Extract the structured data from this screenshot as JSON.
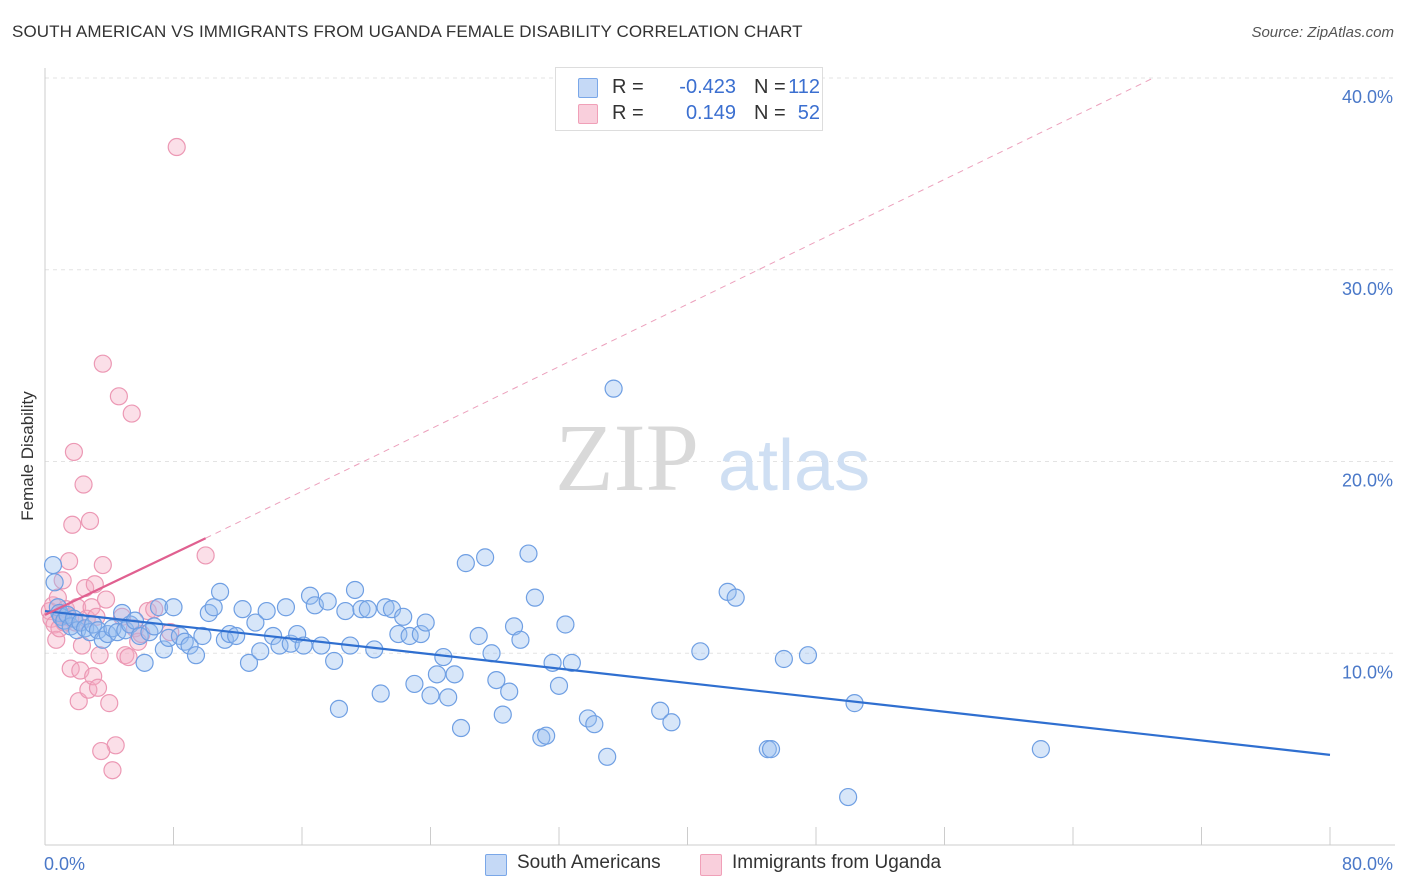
{
  "header": {
    "title": "SOUTH AMERICAN VS IMMIGRANTS FROM UGANDA FEMALE DISABILITY CORRELATION CHART",
    "source": "Source: ZipAtlas.com"
  },
  "watermark": {
    "zip": "ZIP",
    "atlas": "atlas"
  },
  "legend": {
    "rows": [
      {
        "r_label": "R =",
        "r_value": "-0.423",
        "n_label": "N =",
        "n_value": "112",
        "color": "#7aa7e8"
      },
      {
        "r_label": "R =",
        "r_value": "0.149",
        "n_label": "N =",
        "n_value": "52",
        "color": "#f0a0b8"
      }
    ]
  },
  "bottom_legend": {
    "items": [
      {
        "label": "South Americans",
        "color": "#7aa7e8"
      },
      {
        "label": "Immigrants from Uganda",
        "color": "#f0a0b8"
      }
    ]
  },
  "chart_data": {
    "type": "scatter",
    "title": "SOUTH AMERICAN VS IMMIGRANTS FROM UGANDA FEMALE DISABILITY CORRELATION CHART",
    "xlabel": "",
    "ylabel": "Female Disability",
    "xlim": [
      0,
      80
    ],
    "ylim": [
      0,
      40
    ],
    "x_ticks": [
      "0.0%",
      "80.0%"
    ],
    "y_ticks": [
      {
        "value": 10,
        "label": "10.0%"
      },
      {
        "value": 20,
        "label": "20.0%"
      },
      {
        "value": 30,
        "label": "30.0%"
      },
      {
        "value": 40,
        "label": "40.0%"
      }
    ],
    "grid": true,
    "legend_position": "top-center",
    "colors": {
      "blue": "#7aa7e8",
      "blue_line": "#2f6fd0",
      "pink": "#f0a0b8",
      "pink_line": "#e06090"
    },
    "series": [
      {
        "name": "South Americans",
        "color": "#7aa7e8",
        "points": [
          [
            0.5,
            14.6
          ],
          [
            0.6,
            13.7
          ],
          [
            0.8,
            12.4
          ],
          [
            0.9,
            12.1
          ],
          [
            1.0,
            11.9
          ],
          [
            1.2,
            11.7
          ],
          [
            1.4,
            12.0
          ],
          [
            1.6,
            11.4
          ],
          [
            1.8,
            11.8
          ],
          [
            2.0,
            11.2
          ],
          [
            2.2,
            11.6
          ],
          [
            2.5,
            11.3
          ],
          [
            2.8,
            11.1
          ],
          [
            3.0,
            11.5
          ],
          [
            3.3,
            11.2
          ],
          [
            3.6,
            10.7
          ],
          [
            3.9,
            11.0
          ],
          [
            4.2,
            11.3
          ],
          [
            4.5,
            11.1
          ],
          [
            4.8,
            12.1
          ],
          [
            5.0,
            11.2
          ],
          [
            5.3,
            11.5
          ],
          [
            5.6,
            11.7
          ],
          [
            5.9,
            10.9
          ],
          [
            6.2,
            9.5
          ],
          [
            6.5,
            11.1
          ],
          [
            6.8,
            11.4
          ],
          [
            7.1,
            12.4
          ],
          [
            7.4,
            10.2
          ],
          [
            7.7,
            10.8
          ],
          [
            8.0,
            12.4
          ],
          [
            8.4,
            10.9
          ],
          [
            8.7,
            10.6
          ],
          [
            9.0,
            10.4
          ],
          [
            9.4,
            9.9
          ],
          [
            9.8,
            10.9
          ],
          [
            10.2,
            12.1
          ],
          [
            10.5,
            12.4
          ],
          [
            10.9,
            13.2
          ],
          [
            11.2,
            10.7
          ],
          [
            11.5,
            11.0
          ],
          [
            11.9,
            10.9
          ],
          [
            12.3,
            12.3
          ],
          [
            12.7,
            9.5
          ],
          [
            13.1,
            11.6
          ],
          [
            13.4,
            10.1
          ],
          [
            13.8,
            12.2
          ],
          [
            14.2,
            10.9
          ],
          [
            14.6,
            10.4
          ],
          [
            15.0,
            12.4
          ],
          [
            15.3,
            10.5
          ],
          [
            15.7,
            11.0
          ],
          [
            16.1,
            10.4
          ],
          [
            16.5,
            13.0
          ],
          [
            16.8,
            12.5
          ],
          [
            17.2,
            10.4
          ],
          [
            17.6,
            12.7
          ],
          [
            18.0,
            9.6
          ],
          [
            18.3,
            7.1
          ],
          [
            18.7,
            12.2
          ],
          [
            19.0,
            10.4
          ],
          [
            19.3,
            13.3
          ],
          [
            19.7,
            12.3
          ],
          [
            20.1,
            12.3
          ],
          [
            20.5,
            10.2
          ],
          [
            20.9,
            7.9
          ],
          [
            21.2,
            12.4
          ],
          [
            21.6,
            12.3
          ],
          [
            22.0,
            11.0
          ],
          [
            22.3,
            11.9
          ],
          [
            22.7,
            10.9
          ],
          [
            23.0,
            8.4
          ],
          [
            23.4,
            11.0
          ],
          [
            23.7,
            11.6
          ],
          [
            24.0,
            7.8
          ],
          [
            24.4,
            8.9
          ],
          [
            24.8,
            9.8
          ],
          [
            25.1,
            7.7
          ],
          [
            25.5,
            8.9
          ],
          [
            25.9,
            6.1
          ],
          [
            26.2,
            14.7
          ],
          [
            27.0,
            10.9
          ],
          [
            27.4,
            15.0
          ],
          [
            27.8,
            10.0
          ],
          [
            28.1,
            8.6
          ],
          [
            28.5,
            6.8
          ],
          [
            28.9,
            8.0
          ],
          [
            29.2,
            11.4
          ],
          [
            29.6,
            10.7
          ],
          [
            30.1,
            15.2
          ],
          [
            30.5,
            12.9
          ],
          [
            30.9,
            5.6
          ],
          [
            31.2,
            5.7
          ],
          [
            31.6,
            9.5
          ],
          [
            32.0,
            8.3
          ],
          [
            32.4,
            11.5
          ],
          [
            32.8,
            9.5
          ],
          [
            33.8,
            6.6
          ],
          [
            34.2,
            6.3
          ],
          [
            35.0,
            4.6
          ],
          [
            35.4,
            23.8
          ],
          [
            38.3,
            7.0
          ],
          [
            39.0,
            6.4
          ],
          [
            40.8,
            10.1
          ],
          [
            42.5,
            13.2
          ],
          [
            43.0,
            12.9
          ],
          [
            45.0,
            5.0
          ],
          [
            45.2,
            5.0
          ],
          [
            46.0,
            9.7
          ],
          [
            47.5,
            9.9
          ],
          [
            50.4,
            7.4
          ],
          [
            62.0,
            5.0
          ],
          [
            50.0,
            2.5
          ]
        ]
      },
      {
        "name": "Immigrants from Uganda",
        "color": "#f0a0b8",
        "points": [
          [
            0.3,
            12.2
          ],
          [
            0.4,
            11.8
          ],
          [
            0.5,
            12.5
          ],
          [
            0.6,
            11.5
          ],
          [
            0.7,
            10.7
          ],
          [
            0.8,
            12.9
          ],
          [
            0.9,
            11.3
          ],
          [
            1.0,
            12.0
          ],
          [
            1.1,
            13.8
          ],
          [
            1.2,
            11.6
          ],
          [
            1.3,
            12.3
          ],
          [
            1.4,
            11.9
          ],
          [
            1.5,
            14.8
          ],
          [
            1.6,
            9.2
          ],
          [
            1.7,
            16.7
          ],
          [
            1.8,
            20.5
          ],
          [
            1.9,
            11.6
          ],
          [
            2.0,
            12.4
          ],
          [
            2.1,
            7.5
          ],
          [
            2.2,
            9.1
          ],
          [
            2.3,
            10.4
          ],
          [
            2.4,
            18.8
          ],
          [
            2.5,
            13.4
          ],
          [
            2.6,
            11.8
          ],
          [
            2.7,
            8.1
          ],
          [
            2.8,
            16.9
          ],
          [
            2.9,
            12.4
          ],
          [
            3.0,
            8.8
          ],
          [
            3.1,
            13.6
          ],
          [
            3.2,
            11.9
          ],
          [
            3.3,
            8.2
          ],
          [
            3.4,
            9.9
          ],
          [
            3.6,
            14.6
          ],
          [
            3.8,
            12.8
          ],
          [
            4.0,
            7.4
          ],
          [
            4.2,
            3.9
          ],
          [
            4.4,
            5.2
          ],
          [
            4.6,
            23.4
          ],
          [
            3.6,
            25.1
          ],
          [
            3.5,
            4.9
          ],
          [
            4.8,
            11.9
          ],
          [
            5.0,
            9.9
          ],
          [
            5.2,
            9.8
          ],
          [
            5.4,
            22.5
          ],
          [
            5.6,
            11.3
          ],
          [
            5.8,
            10.6
          ],
          [
            6.0,
            11.0
          ],
          [
            6.4,
            12.2
          ],
          [
            6.8,
            12.3
          ],
          [
            7.8,
            11.1
          ],
          [
            8.2,
            36.4
          ],
          [
            10.0,
            15.1
          ]
        ]
      }
    ],
    "trend_lines": [
      {
        "series": "South Americans",
        "x": [
          0,
          80
        ],
        "y": [
          12.2,
          4.7
        ],
        "style": "solid"
      },
      {
        "series": "Immigrants from Uganda",
        "x": [
          0,
          10
        ],
        "y": [
          12.0,
          16.0
        ],
        "style": "solid"
      },
      {
        "series": "Immigrants from Uganda",
        "x": [
          10,
          69
        ],
        "y": [
          16.0,
          40.0
        ],
        "style": "dashed"
      }
    ]
  }
}
